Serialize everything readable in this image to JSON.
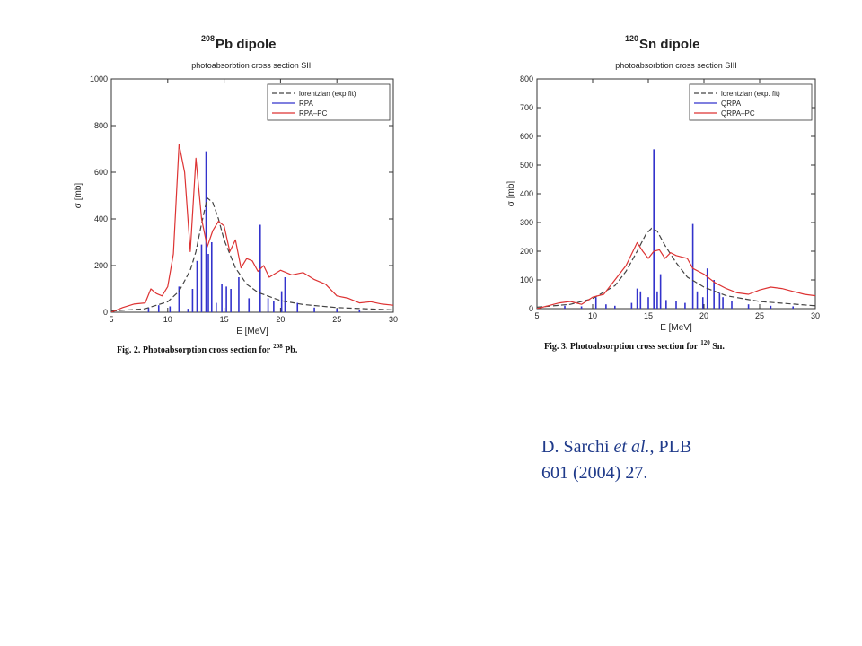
{
  "reference": {
    "author": "D. Sarchi",
    "etal": "et al.",
    "journal": ", PLB",
    "volume_line": "601 (2004) 27."
  },
  "chart_data": [
    {
      "type": "line",
      "title_sup": "208",
      "title": "Pb  dipole",
      "subtitle": "photoabsorbtion cross section  SIII",
      "xlabel": "E [MeV]",
      "ylabel": "σ [mb]",
      "xlim": [
        5,
        30
      ],
      "ylim": [
        0,
        1000
      ],
      "xticks": [
        5,
        10,
        15,
        20,
        25,
        30
      ],
      "xtick_labels": [
        "5",
        "10",
        "15",
        "20",
        "25",
        "30"
      ],
      "yticks": [
        0,
        200,
        400,
        600,
        800,
        1000
      ],
      "ytick_labels": [
        "0",
        "200",
        "400",
        "600",
        "800",
        "1000"
      ],
      "grid": false,
      "legend_position": "top-right",
      "caption": "Fig. 2. Photoabsorption cross section for",
      "caption_sup": "208",
      "caption_tail": "Pb.",
      "series": [
        {
          "name": "lorentzian (exp fit)",
          "style": "dashed",
          "color": "#444444",
          "points": [
            [
              5,
              5
            ],
            [
              8,
              15
            ],
            [
              10,
              45
            ],
            [
              11,
              90
            ],
            [
              12,
              180
            ],
            [
              12.5,
              260
            ],
            [
              13,
              380
            ],
            [
              13.5,
              490
            ],
            [
              14,
              470
            ],
            [
              14.5,
              400
            ],
            [
              15,
              310
            ],
            [
              16,
              190
            ],
            [
              17,
              120
            ],
            [
              18,
              85
            ],
            [
              20,
              50
            ],
            [
              22,
              33
            ],
            [
              25,
              20
            ],
            [
              30,
              10
            ]
          ]
        },
        {
          "name": "RPA",
          "style": "spikes",
          "color": "#3333cc",
          "points": [
            [
              8.3,
              20
            ],
            [
              9.2,
              30
            ],
            [
              10.2,
              25
            ],
            [
              11.0,
              110
            ],
            [
              11.8,
              15
            ],
            [
              12.2,
              100
            ],
            [
              12.6,
              220
            ],
            [
              13.0,
              290
            ],
            [
              13.4,
              690
            ],
            [
              13.6,
              250
            ],
            [
              13.9,
              300
            ],
            [
              14.3,
              40
            ],
            [
              14.8,
              120
            ],
            [
              15.2,
              110
            ],
            [
              15.6,
              100
            ],
            [
              16.3,
              150
            ],
            [
              17.2,
              60
            ],
            [
              18.2,
              375
            ],
            [
              18.9,
              60
            ],
            [
              19.4,
              50
            ],
            [
              20.1,
              90
            ],
            [
              20.4,
              150
            ],
            [
              21.5,
              40
            ],
            [
              23.0,
              20
            ],
            [
              25.0,
              15
            ],
            [
              27.0,
              10
            ]
          ]
        },
        {
          "name": "RPA–PC",
          "style": "solid",
          "color": "#dd3333",
          "points": [
            [
              5,
              0
            ],
            [
              6,
              20
            ],
            [
              7,
              35
            ],
            [
              8,
              40
            ],
            [
              8.5,
              100
            ],
            [
              9,
              80
            ],
            [
              9.5,
              70
            ],
            [
              10,
              110
            ],
            [
              10.5,
              250
            ],
            [
              11,
              720
            ],
            [
              11.5,
              600
            ],
            [
              12,
              260
            ],
            [
              12.5,
              660
            ],
            [
              13,
              400
            ],
            [
              13.5,
              280
            ],
            [
              14,
              350
            ],
            [
              14.5,
              390
            ],
            [
              15,
              370
            ],
            [
              15.5,
              260
            ],
            [
              16,
              310
            ],
            [
              16.5,
              190
            ],
            [
              17,
              230
            ],
            [
              17.5,
              220
            ],
            [
              18,
              175
            ],
            [
              18.5,
              200
            ],
            [
              19,
              150
            ],
            [
              20,
              180
            ],
            [
              21,
              160
            ],
            [
              22,
              170
            ],
            [
              23,
              140
            ],
            [
              24,
              120
            ],
            [
              25,
              70
            ],
            [
              26,
              60
            ],
            [
              27,
              40
            ],
            [
              28,
              45
            ],
            [
              29,
              35
            ],
            [
              30,
              30
            ]
          ]
        }
      ]
    },
    {
      "type": "line",
      "title_sup": "120",
      "title": "Sn dipole",
      "subtitle": "photoabsorbtion cross section  SIII",
      "xlabel": "E [MeV]",
      "ylabel": "σ [mb]",
      "xlim": [
        5,
        30
      ],
      "ylim": [
        0,
        800
      ],
      "xticks": [
        5,
        10,
        15,
        20,
        25,
        30
      ],
      "xtick_labels": [
        "5",
        "10",
        "15",
        "20",
        "25",
        "30"
      ],
      "yticks": [
        0,
        100,
        200,
        300,
        400,
        500,
        600,
        700,
        800
      ],
      "ytick_labels": [
        "0",
        "100",
        "200",
        "300",
        "400",
        "500",
        "600",
        "700",
        "800"
      ],
      "grid": false,
      "legend_position": "top-right",
      "caption": "Fig. 3. Photoabsorption cross section for",
      "caption_sup": "120",
      "caption_tail": "Sn.",
      "series": [
        {
          "name": "lorentzian (exp. fit)",
          "style": "dashed",
          "color": "#444444",
          "points": [
            [
              5,
              5
            ],
            [
              8,
              15
            ],
            [
              10,
              35
            ],
            [
              12,
              80
            ],
            [
              13,
              130
            ],
            [
              14,
              200
            ],
            [
              14.8,
              260
            ],
            [
              15.3,
              280
            ],
            [
              15.8,
              270
            ],
            [
              16.5,
              220
            ],
            [
              17.5,
              160
            ],
            [
              18.5,
              110
            ],
            [
              20,
              75
            ],
            [
              22,
              45
            ],
            [
              25,
              25
            ],
            [
              30,
              10
            ]
          ]
        },
        {
          "name": "QRPA",
          "style": "spikes",
          "color": "#3333cc",
          "points": [
            [
              7.5,
              10
            ],
            [
              9,
              8
            ],
            [
              10.3,
              40
            ],
            [
              11.2,
              15
            ],
            [
              12,
              10
            ],
            [
              13.5,
              20
            ],
            [
              14,
              70
            ],
            [
              14.3,
              60
            ],
            [
              15.0,
              40
            ],
            [
              15.5,
              555
            ],
            [
              15.8,
              60
            ],
            [
              16.1,
              120
            ],
            [
              16.6,
              30
            ],
            [
              17.5,
              25
            ],
            [
              18.3,
              20
            ],
            [
              19.0,
              295
            ],
            [
              19.4,
              60
            ],
            [
              19.9,
              40
            ],
            [
              20.3,
              140
            ],
            [
              20.9,
              100
            ],
            [
              21.4,
              55
            ],
            [
              21.7,
              40
            ],
            [
              22.5,
              25
            ],
            [
              24,
              15
            ],
            [
              26,
              10
            ],
            [
              28,
              8
            ]
          ]
        },
        {
          "name": "QRPA–PC",
          "style": "solid",
          "color": "#dd3333",
          "points": [
            [
              5,
              0
            ],
            [
              6,
              10
            ],
            [
              7,
              20
            ],
            [
              8,
              25
            ],
            [
              9,
              15
            ],
            [
              10,
              40
            ],
            [
              11,
              50
            ],
            [
              12,
              100
            ],
            [
              13,
              150
            ],
            [
              14,
              230
            ],
            [
              14.5,
              200
            ],
            [
              15,
              175
            ],
            [
              15.5,
              200
            ],
            [
              16,
              205
            ],
            [
              16.5,
              175
            ],
            [
              17,
              195
            ],
            [
              17.5,
              185
            ],
            [
              18,
              180
            ],
            [
              18.5,
              175
            ],
            [
              19,
              140
            ],
            [
              20,
              120
            ],
            [
              21,
              90
            ],
            [
              22,
              70
            ],
            [
              23,
              55
            ],
            [
              24,
              50
            ],
            [
              25,
              65
            ],
            [
              26,
              75
            ],
            [
              27,
              70
            ],
            [
              28,
              60
            ],
            [
              29,
              50
            ],
            [
              30,
              45
            ]
          ]
        }
      ]
    }
  ]
}
